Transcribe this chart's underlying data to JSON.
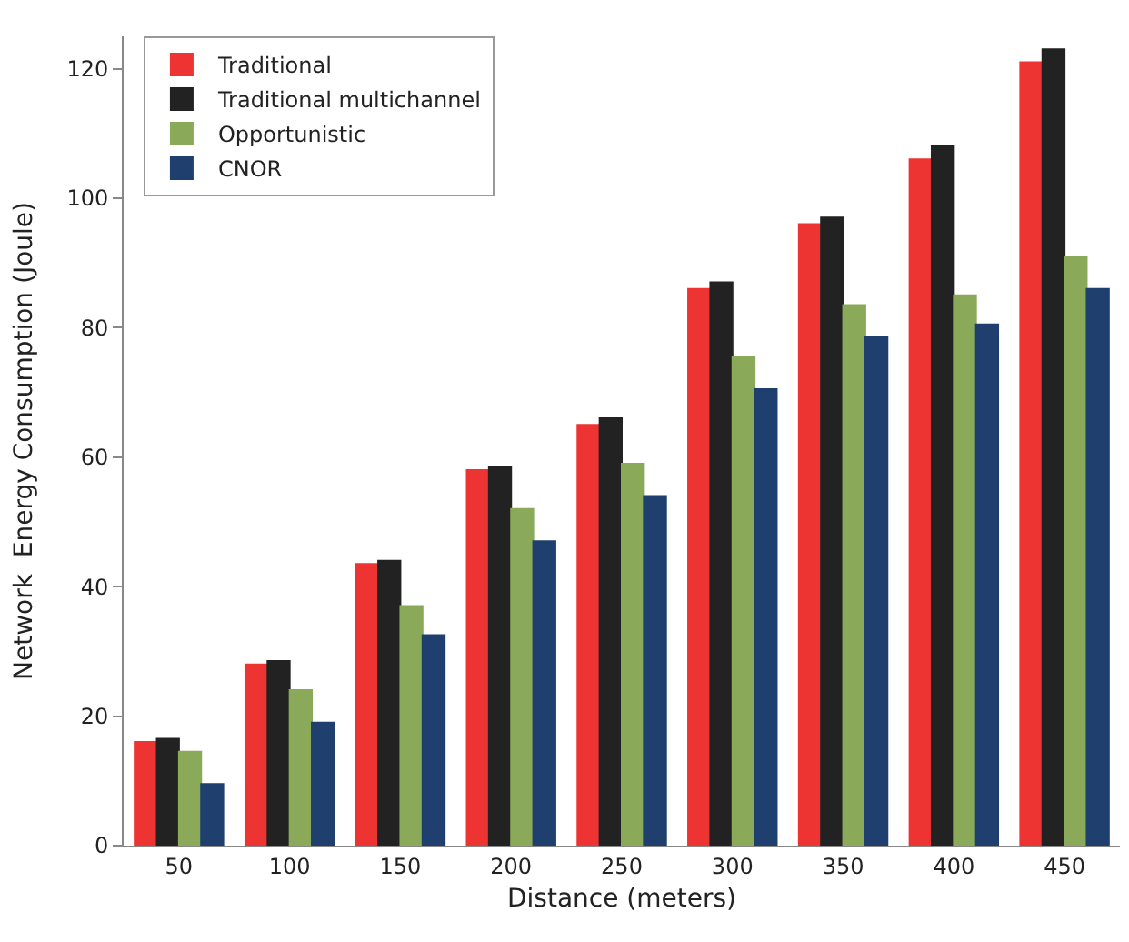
{
  "chart_data": {
    "type": "bar",
    "xlabel": "Distance (meters)",
    "ylabel": "Network  Energy Consumption (Joule)",
    "categories": [
      "50",
      "100",
      "150",
      "200",
      "250",
      "300",
      "350",
      "400",
      "450"
    ],
    "series": [
      {
        "name": "Traditional",
        "color": "#ee3333",
        "values": [
          16,
          28,
          43.5,
          58,
          65,
          86,
          96,
          106,
          121
        ]
      },
      {
        "name": "Traditional multichannel",
        "color": "#222222",
        "values": [
          16.5,
          28.5,
          44,
          58.5,
          66,
          87,
          97,
          108,
          123
        ]
      },
      {
        "name": "Opportunistic",
        "color": "#8aaa5a",
        "values": [
          14.5,
          24,
          37,
          52,
          59,
          75.5,
          83.5,
          85,
          91
        ]
      },
      {
        "name": "CNOR",
        "color": "#1f3f6f",
        "values": [
          9.5,
          19,
          32.5,
          47,
          54,
          70.5,
          78.5,
          80.5,
          86
        ]
      }
    ],
    "ylim": [
      0,
      125
    ],
    "yticks": [
      0,
      20,
      40,
      60,
      80,
      100,
      120
    ],
    "legend": "top left"
  }
}
